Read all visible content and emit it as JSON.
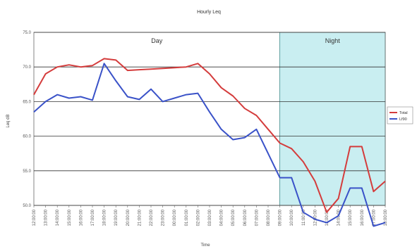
{
  "chart_data": {
    "type": "line",
    "title": "Hourly Leq",
    "xlabel": "Time",
    "ylabel": "Leq dB",
    "ylim": [
      50,
      75
    ],
    "yticks": [
      "50.0",
      "55.0",
      "60.0",
      "65.0",
      "70.0",
      "75.0"
    ],
    "grid": "horizontal",
    "legend_position": "right",
    "regions": [
      {
        "label": "Day",
        "from_index": 0,
        "to_index": 21,
        "shaded": false
      },
      {
        "label": "Night",
        "from_index": 21,
        "to_index": 30,
        "shaded": true,
        "color": "#c9eef1"
      }
    ],
    "categories": [
      "12:00:00",
      "13:00:00",
      "14:00:00",
      "15:00:00",
      "16:00:00",
      "17:00:00",
      "18:00:00",
      "19:00:00",
      "20:00:00",
      "21:00:00",
      "22:00:00",
      "23:00:00",
      "00:00:00",
      "01:00:00",
      "02:00:00",
      "03:00:00",
      "04:00:00",
      "05:00:00",
      "06:00:00",
      "07:00:00",
      "08:00:00",
      "09:00:00",
      "10:00:00",
      "11:00:00",
      "12:00:00",
      "13:00:00",
      "14:00:00",
      "15:00:00",
      "16:00:00",
      "17:00:00",
      "18:00:00"
    ],
    "series": [
      {
        "name": "Total",
        "color": "#d43c3c",
        "values": [
          66.0,
          69.0,
          70.0,
          70.3,
          70.0,
          70.2,
          71.2,
          71.0,
          69.5,
          69.6,
          69.7,
          69.8,
          69.9,
          70.0,
          70.5,
          69.0,
          67.0,
          65.8,
          64.0,
          63.0,
          61.0,
          59.0,
          58.2,
          56.3,
          53.5,
          49.0,
          51.0,
          58.5,
          58.5,
          52.0,
          53.5
        ]
      },
      {
        "name": "Lf90",
        "color": "#3a52c8",
        "values": [
          63.5,
          65.0,
          66.0,
          65.5,
          65.7,
          65.2,
          70.5,
          68.0,
          65.7,
          65.3,
          66.8,
          65.0,
          65.5,
          66.0,
          66.2,
          63.5,
          61.0,
          59.5,
          59.8,
          61.0,
          57.5,
          54.0,
          54.0,
          49.0,
          48.0,
          47.5,
          48.5,
          52.5,
          52.5,
          47.0,
          47.5
        ]
      }
    ]
  }
}
